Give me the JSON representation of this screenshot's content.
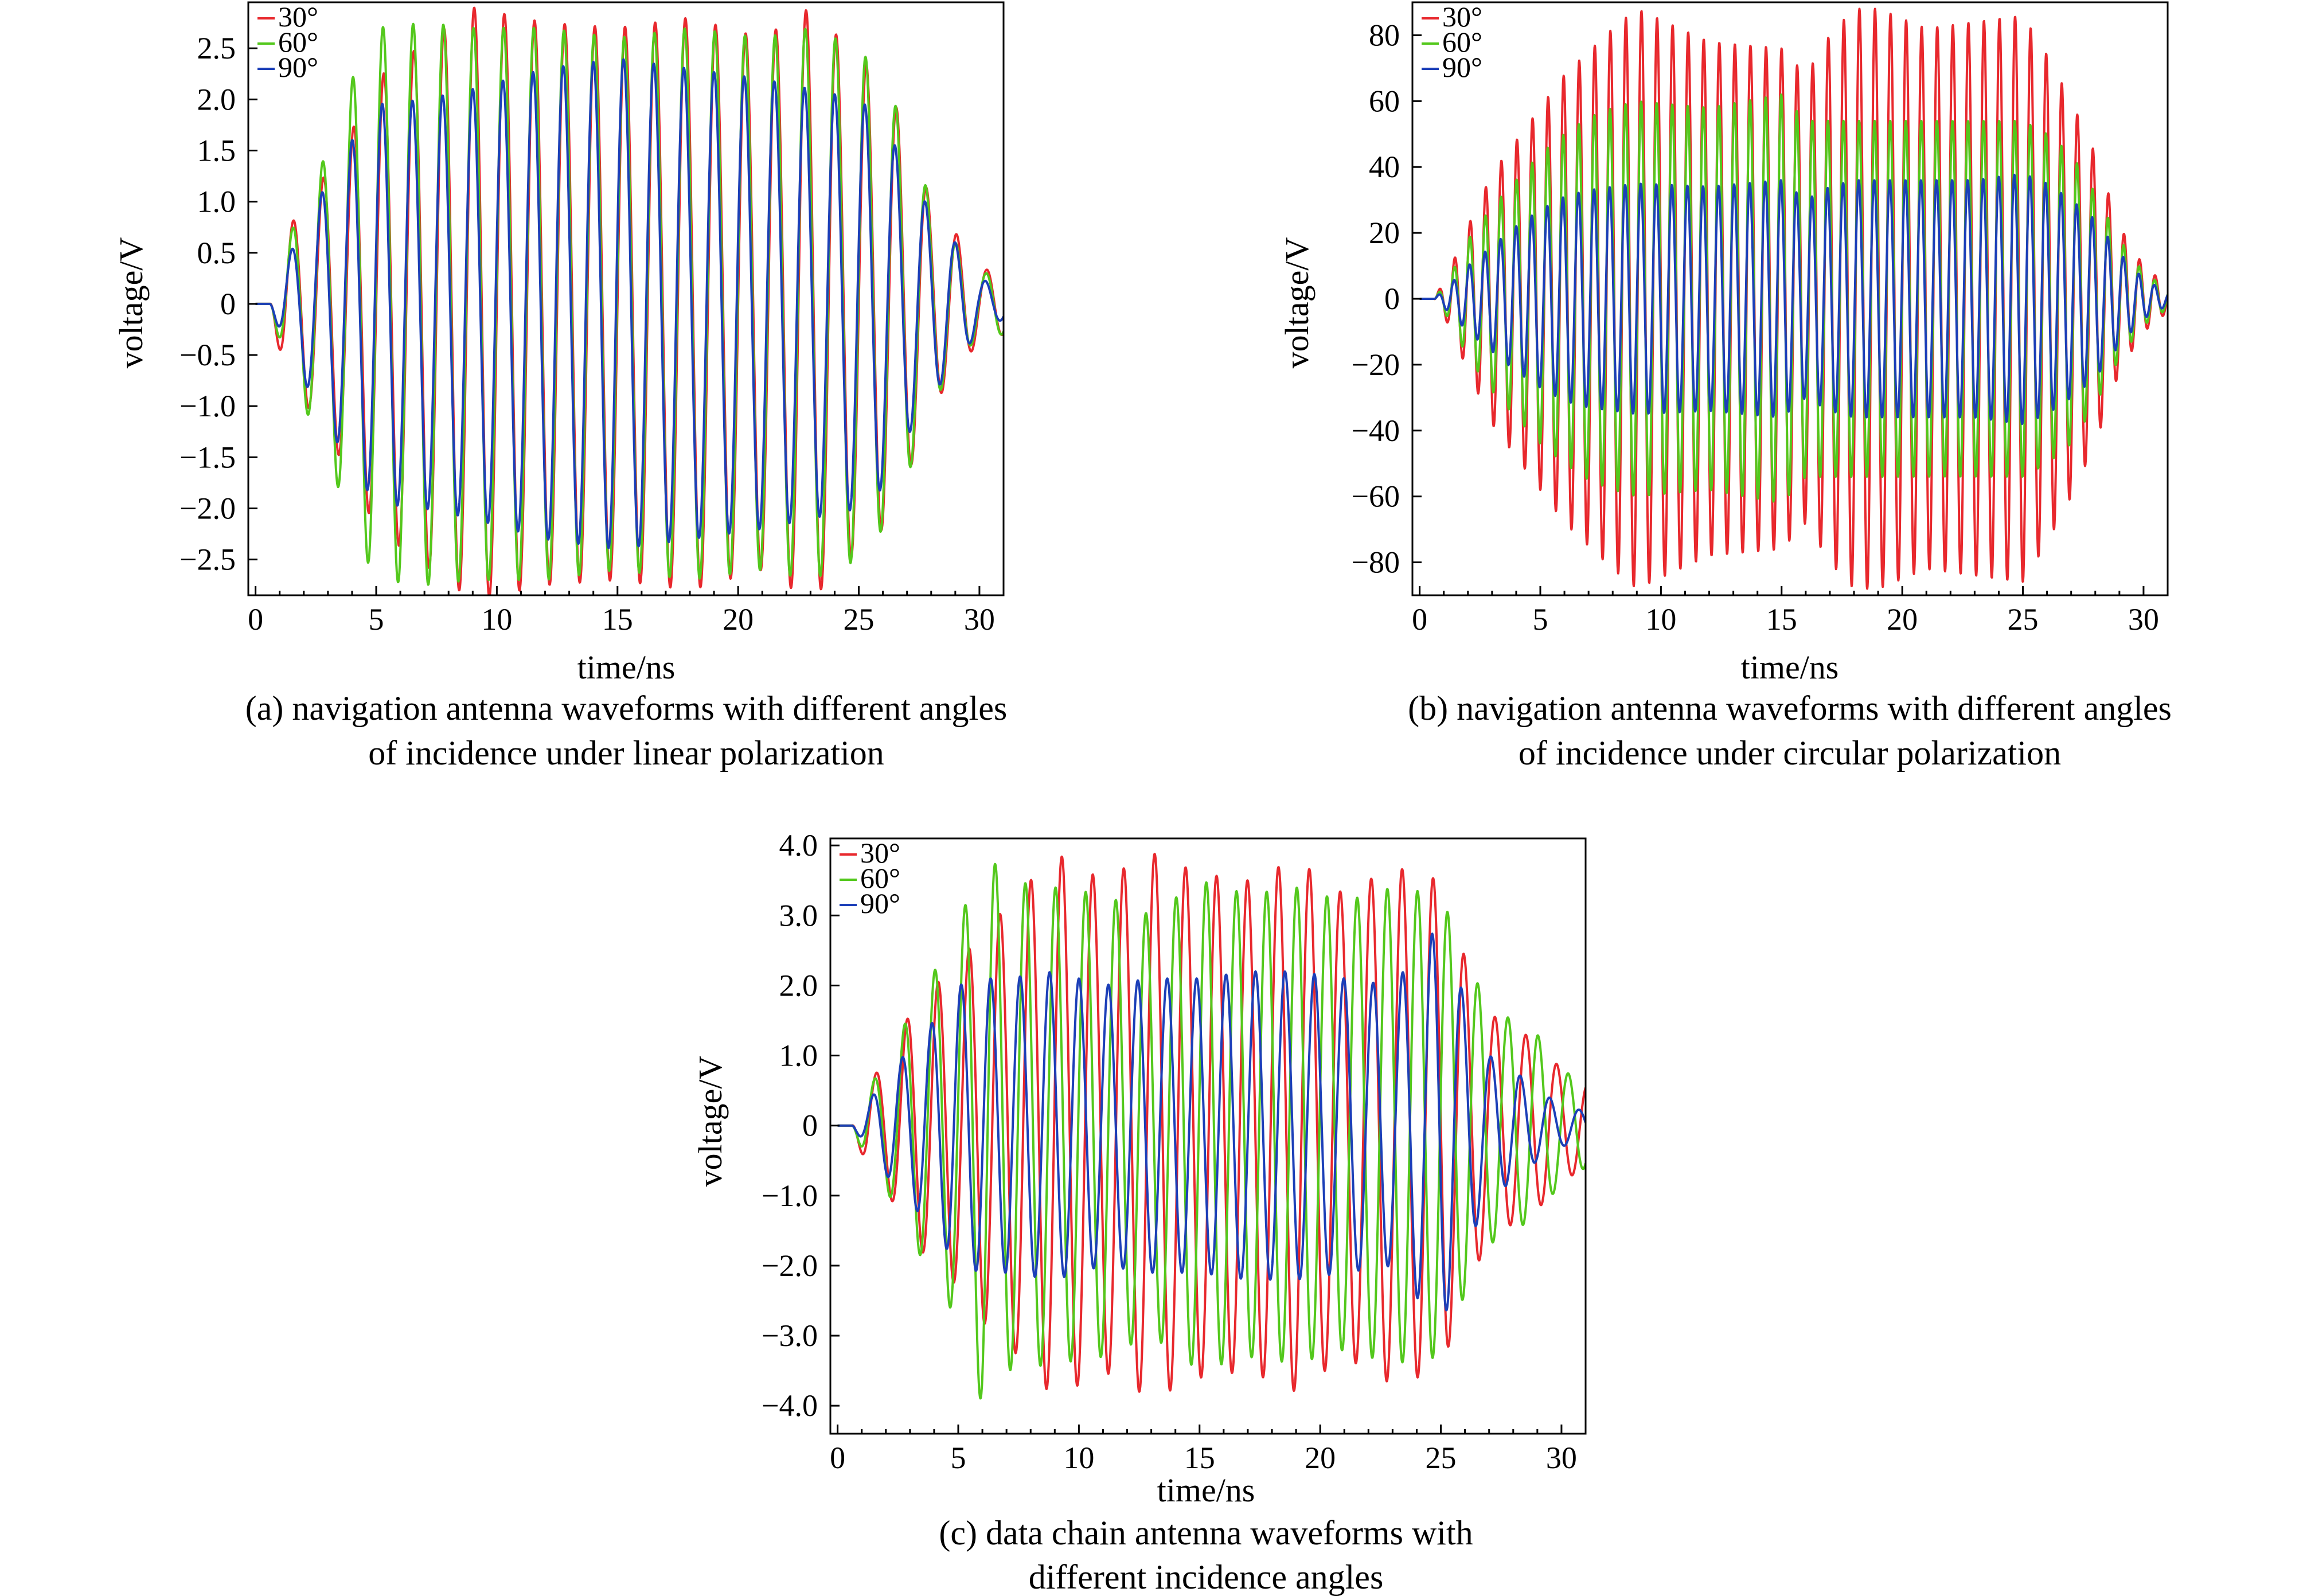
{
  "figure": {
    "panels": [
      {
        "id": "a",
        "caption_lines": [
          "(a) navigation antenna waveforms with different angles",
          "of incidence under linear polarization"
        ]
      },
      {
        "id": "b",
        "caption_lines": [
          "(b) navigation antenna waveforms with different angles",
          "of incidence under circular polarization"
        ]
      },
      {
        "id": "c",
        "caption_lines": [
          "(c) data chain antenna waveforms with",
          "different incidence angles"
        ]
      }
    ]
  },
  "chart_data": [
    {
      "type": "line",
      "xlabel": "time/ns",
      "ylabel": "voltage/V",
      "xlim": [
        -0.3,
        31
      ],
      "ylim": [
        -2.85,
        2.95
      ],
      "xticks": [
        0,
        5,
        10,
        15,
        20,
        25,
        30
      ],
      "yticks": [
        -2.5,
        -2.0,
        -1.5,
        -1.0,
        -0.5,
        0,
        0.5,
        1.0,
        1.5,
        2.0,
        2.5
      ],
      "ytick_labels": [
        "−2.5",
        "−2.0",
        "−1.5",
        "−1.0",
        "−0.5",
        "0",
        "0.5",
        "1.0",
        "1.5",
        "2.0",
        "2.5"
      ],
      "legend_position": "top-left",
      "grid": false,
      "series": [
        {
          "name": "30°",
          "color": "#e8282d",
          "x": [
            0,
            0.6,
            1.2,
            2,
            3,
            4,
            5,
            7,
            9,
            12,
            15,
            18,
            21,
            23,
            25,
            26,
            27,
            28,
            29,
            30,
            31
          ],
          "y": [
            0,
            0,
            0.7,
            0.95,
            1.3,
            1.7,
            2.2,
            2.55,
            2.9,
            2.75,
            2.7,
            2.8,
            2.6,
            2.9,
            2.4,
            2.2,
            1.7,
            1.0,
            0.7,
            0.35,
            0.3
          ]
        },
        {
          "name": "60°",
          "color": "#53c81c",
          "x": [
            0,
            0.6,
            1.2,
            2,
            3,
            4,
            5,
            7,
            9,
            12,
            15,
            18,
            21,
            23,
            25,
            26,
            27,
            28,
            29,
            30,
            31
          ],
          "y": [
            0,
            0,
            0.55,
            1.0,
            1.5,
            2.2,
            2.7,
            2.75,
            2.7,
            2.7,
            2.6,
            2.7,
            2.6,
            2.7,
            2.5,
            2.2,
            1.7,
            1.0,
            0.6,
            0.3,
            0.3
          ]
        },
        {
          "name": "90°",
          "color": "#1c3fb8",
          "x": [
            0,
            0.6,
            1.2,
            2,
            3,
            4,
            5,
            7,
            9,
            12,
            15,
            18,
            21,
            23,
            25,
            26,
            27,
            28,
            29,
            30,
            31
          ],
          "y": [
            0,
            0,
            0.4,
            0.75,
            1.2,
            1.6,
            1.95,
            2.0,
            2.1,
            2.3,
            2.4,
            2.3,
            2.2,
            2.1,
            2.0,
            1.8,
            1.3,
            0.9,
            0.6,
            0.25,
            0.15
          ]
        }
      ]
    },
    {
      "type": "line",
      "xlabel": "time/ns",
      "ylabel": "voltage/V",
      "xlim": [
        -0.3,
        31
      ],
      "ylim": [
        -90,
        90
      ],
      "xticks": [
        0,
        5,
        10,
        15,
        20,
        25,
        30
      ],
      "yticks": [
        -80,
        -60,
        -40,
        -20,
        0,
        20,
        40,
        60,
        80
      ],
      "ytick_labels": [
        "−80",
        "−60",
        "−40",
        "−20",
        "0",
        "20",
        "40",
        "60",
        "80"
      ],
      "legend_position": "top-left",
      "grid": false,
      "series": [
        {
          "name": "30°",
          "color": "#e8282d",
          "x": [
            0,
            0.6,
            1.2,
            2,
            3,
            4,
            5,
            6,
            7,
            8,
            9,
            12,
            15,
            16,
            17,
            18,
            19,
            21,
            23,
            25,
            26,
            27,
            28,
            29,
            30,
            31
          ],
          "y": [
            0,
            0,
            8,
            22,
            38,
            48,
            58,
            68,
            75,
            82,
            88,
            78,
            76,
            68,
            80,
            88,
            88,
            82,
            84,
            86,
            74,
            60,
            44,
            22,
            10,
            4
          ]
        },
        {
          "name": "60°",
          "color": "#53c81c",
          "x": [
            0,
            0.6,
            1.2,
            2,
            3,
            4,
            5,
            6,
            7,
            8,
            9,
            12,
            15,
            16,
            17,
            18,
            19,
            21,
            23,
            25,
            26,
            27,
            28,
            29,
            30,
            31
          ],
          "y": [
            0,
            0,
            6,
            18,
            28,
            36,
            44,
            50,
            55,
            58,
            60,
            58,
            62,
            54,
            54,
            54,
            54,
            54,
            54,
            54,
            50,
            44,
            32,
            18,
            8,
            3
          ]
        },
        {
          "name": "90°",
          "color": "#1c3fb8",
          "x": [
            0,
            0.6,
            1.2,
            2,
            3,
            4,
            5,
            6,
            7,
            8,
            9,
            12,
            15,
            16,
            17,
            18,
            19,
            21,
            23,
            25,
            26,
            27,
            28,
            29,
            30,
            31
          ],
          "y": [
            0,
            0,
            4,
            10,
            16,
            22,
            27,
            31,
            33,
            34,
            35,
            34,
            36,
            30,
            34,
            36,
            36,
            36,
            36,
            38,
            35,
            30,
            24,
            14,
            6,
            2
          ]
        }
      ]
    },
    {
      "type": "line",
      "xlabel": "time/ns",
      "ylabel": "voltage/V",
      "xlim": [
        -0.3,
        31
      ],
      "ylim": [
        -4.4,
        4.1
      ],
      "xticks": [
        0,
        5,
        10,
        15,
        20,
        25,
        30
      ],
      "yticks": [
        -4.0,
        -3.0,
        -2.0,
        -1.0,
        0,
        1.0,
        2.0,
        3.0,
        4.0
      ],
      "ytick_labels": [
        "−4.0",
        "−3.0",
        "−2.0",
        "−1.0",
        "0",
        "1.0",
        "2.0",
        "3.0",
        "4.0"
      ],
      "legend_position": "top-left",
      "grid": false,
      "series": [
        {
          "name": "30°",
          "color": "#e8282d",
          "x": [
            0,
            0.6,
            1.2,
            2,
            3,
            4,
            5,
            6,
            7,
            9,
            11,
            13,
            15,
            17,
            19,
            21,
            23,
            25,
            26,
            27,
            28,
            29,
            30,
            31
          ],
          "y": [
            0,
            0,
            0.6,
            0.9,
            1.6,
            2.0,
            2.3,
            2.8,
            3.1,
            3.9,
            3.5,
            3.9,
            3.6,
            3.5,
            3.8,
            3.3,
            3.7,
            3.5,
            2.4,
            1.6,
            1.4,
            1.2,
            0.8,
            0.6
          ]
        },
        {
          "name": "60°",
          "color": "#53c81c",
          "x": [
            0,
            0.6,
            1.2,
            2,
            3,
            4,
            5,
            6,
            7,
            9,
            11,
            13,
            15,
            17,
            19,
            21,
            23,
            25,
            26,
            27,
            28,
            29,
            30,
            31
          ],
          "y": [
            0,
            0,
            0.5,
            0.9,
            1.6,
            2.2,
            2.8,
            4.0,
            3.5,
            3.4,
            3.3,
            3.0,
            3.5,
            3.3,
            3.4,
            3.2,
            3.4,
            3.3,
            2.4,
            1.7,
            1.5,
            1.3,
            0.8,
            0.6
          ]
        },
        {
          "name": "90°",
          "color": "#1c3fb8",
          "x": [
            0,
            0.6,
            1.2,
            2,
            3,
            4,
            5,
            6,
            7,
            9,
            11,
            13,
            15,
            17,
            19,
            21,
            23,
            25,
            26,
            27,
            28,
            29,
            30,
            31
          ],
          "y": [
            0,
            0,
            0.3,
            0.7,
            1.1,
            1.5,
            2.0,
            2.1,
            2.1,
            2.2,
            2.0,
            2.1,
            2.1,
            2.2,
            2.2,
            2.1,
            2.0,
            2.9,
            1.8,
            1.0,
            0.8,
            0.5,
            0.3,
            0.2
          ]
        }
      ]
    }
  ]
}
